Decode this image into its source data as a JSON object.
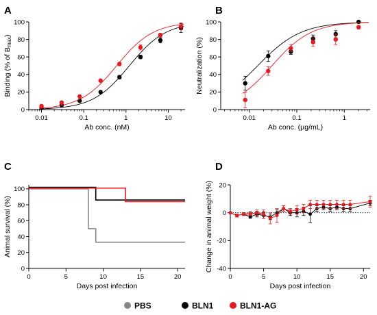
{
  "chart_data": [
    {
      "panel": "A",
      "type": "scatter",
      "xlabel": "Ab conc. (nM)",
      "ylabel_main": "Binding (% of B",
      "ylabel_sub": "max",
      "ylabel_close": ")",
      "x_scale": "log",
      "xlim": [
        0.005,
        25
      ],
      "ylim": [
        0,
        100
      ],
      "x_ticks": [
        0.01,
        0.1,
        1,
        10
      ],
      "x_tick_labels": [
        "0.01",
        "0.1",
        "1",
        "10"
      ],
      "y_ticks": [
        0,
        20,
        40,
        60,
        80,
        100
      ],
      "y_tick_labels": [
        "0",
        "20",
        "40",
        "60",
        "80",
        "100"
      ],
      "fit": "sigmoid",
      "series": [
        {
          "name": "BLN1",
          "color": "#000000",
          "x": [
            0.01,
            0.03,
            0.08,
            0.25,
            0.7,
            2.2,
            6.5,
            20
          ],
          "y": [
            2,
            5,
            10,
            20,
            37,
            60,
            79,
            93
          ],
          "err": [
            0,
            0,
            0,
            1,
            2,
            2,
            3,
            5
          ],
          "ec50": 1.2,
          "hill": 1.0,
          "top": 100
        },
        {
          "name": "BLN1-AG",
          "color": "#e8191e",
          "x": [
            0.01,
            0.03,
            0.08,
            0.25,
            0.7,
            2.2,
            6.5,
            20
          ],
          "y": [
            4,
            8,
            15,
            33,
            52,
            71,
            85,
            95
          ],
          "err": [
            0,
            0,
            0,
            1,
            2,
            3,
            2,
            4
          ],
          "ec50": 0.6,
          "hill": 1.0,
          "top": 100
        }
      ]
    },
    {
      "panel": "B",
      "type": "scatter",
      "xlabel": "Ab conc. (µg/mL)",
      "ylabel": "Neutralization (%)",
      "x_scale": "log",
      "xlim": [
        0.0025,
        3.5
      ],
      "ylim": [
        0,
        100
      ],
      "x_ticks": [
        0.01,
        0.1,
        1
      ],
      "x_tick_labels": [
        "0.01",
        "0.1",
        "1"
      ],
      "y_ticks": [
        0,
        20,
        40,
        60,
        80,
        100
      ],
      "y_tick_labels": [
        "0",
        "20",
        "40",
        "60",
        "80",
        "100"
      ],
      "fit": "sigmoid",
      "series": [
        {
          "name": "BLN1",
          "color": "#000000",
          "x": [
            0.0082,
            0.025,
            0.075,
            0.22,
            0.66,
            2.0
          ],
          "y": [
            30,
            61,
            66,
            81,
            86,
            100
          ],
          "err": [
            8,
            6,
            3,
            4,
            4,
            0
          ],
          "ec50": 0.015,
          "hill": 0.95,
          "top": 100
        },
        {
          "name": "BLN1-AG",
          "color": "#e8191e",
          "x": [
            0.0082,
            0.025,
            0.075,
            0.22,
            0.66,
            2.0
          ],
          "y": [
            11,
            44,
            70,
            77,
            80,
            94
          ],
          "err": [
            9,
            5,
            4,
            5,
            6,
            2
          ],
          "ec50": 0.03,
          "hill": 1.05,
          "top": 100
        }
      ]
    },
    {
      "panel": "C",
      "type": "line",
      "step": true,
      "xlabel": "Days post infection",
      "ylabel": "Animal survival (%)",
      "xlim": [
        0,
        21
      ],
      "ylim": [
        0,
        105
      ],
      "x_ticks": [
        0,
        5,
        10,
        15,
        20
      ],
      "x_tick_labels": [
        "0",
        "5",
        "10",
        "15",
        "20"
      ],
      "y_ticks": [
        0,
        20,
        40,
        60,
        80,
        100
      ],
      "y_tick_labels": [
        "0",
        "20",
        "40",
        "60",
        "80",
        "100"
      ],
      "series": [
        {
          "name": "PBS",
          "color": "#888888",
          "x": [
            0,
            8,
            8,
            9,
            9,
            21
          ],
          "y": [
            100,
            100,
            50,
            50,
            33,
            33
          ]
        },
        {
          "name": "BLN1",
          "color": "#000000",
          "x": [
            0,
            9,
            9,
            21
          ],
          "y": [
            102,
            102,
            86,
            86
          ]
        },
        {
          "name": "BLN1-AG",
          "color": "#e8191e",
          "x": [
            0,
            13,
            13,
            21
          ],
          "y": [
            101,
            101,
            84,
            84
          ]
        }
      ]
    },
    {
      "panel": "D",
      "type": "line",
      "xlabel": "Days post infection",
      "ylabel": "Change in animal weight (%)",
      "xlim": [
        0,
        21
      ],
      "ylim": [
        -40,
        20
      ],
      "x_ticks": [
        0,
        5,
        10,
        15,
        20
      ],
      "x_tick_labels": [
        "0",
        "5",
        "10",
        "15",
        "20"
      ],
      "y_ticks": [
        -40,
        -20,
        0,
        20
      ],
      "y_tick_labels": [
        "-40",
        "-20",
        "0",
        "20"
      ],
      "reference_line": 0,
      "series": [
        {
          "name": "PBS",
          "color": "#888888",
          "x": [
            0,
            1,
            2,
            3,
            4,
            5
          ],
          "y": [
            0,
            -2,
            -1,
            0,
            -1,
            0
          ],
          "err": [
            0,
            1,
            1,
            1,
            1,
            1
          ]
        },
        {
          "name": "BLN1",
          "color": "#000000",
          "x": [
            0,
            1,
            2,
            3,
            4,
            5,
            6,
            7,
            8,
            9,
            10,
            11,
            12,
            13,
            14,
            15,
            16,
            17,
            18,
            21
          ],
          "y": [
            0,
            -2,
            -1,
            -3,
            -1,
            -2,
            -3,
            0,
            3,
            0,
            0,
            1,
            -1,
            3,
            4,
            3,
            4,
            3,
            3,
            7
          ],
          "err": [
            0,
            1,
            1,
            1,
            2,
            2,
            2,
            2,
            2,
            2,
            3,
            3,
            6,
            2,
            2,
            2,
            2,
            2,
            2,
            2
          ]
        },
        {
          "name": "BLN1-AG",
          "color": "#e8191e",
          "x": [
            0,
            1,
            2,
            3,
            4,
            5,
            6,
            7,
            8,
            9,
            10,
            11,
            12,
            13,
            14,
            15,
            16,
            17,
            18,
            21
          ],
          "y": [
            0,
            -2,
            -1,
            -1,
            0,
            -1,
            -4,
            -2,
            3,
            1,
            2,
            3,
            6,
            6,
            6,
            6,
            6,
            6,
            6,
            8
          ],
          "err": [
            0,
            1,
            1,
            1,
            2,
            3,
            4,
            5,
            2,
            2,
            3,
            3,
            3,
            3,
            3,
            3,
            3,
            3,
            3,
            4
          ]
        }
      ]
    }
  ],
  "legend": {
    "placement": "bottom-center",
    "items": [
      {
        "name": "PBS",
        "color": "#888888"
      },
      {
        "name": "BLN1",
        "color": "#000000"
      },
      {
        "name": "BLN1-AG",
        "color": "#e8191e"
      }
    ]
  }
}
